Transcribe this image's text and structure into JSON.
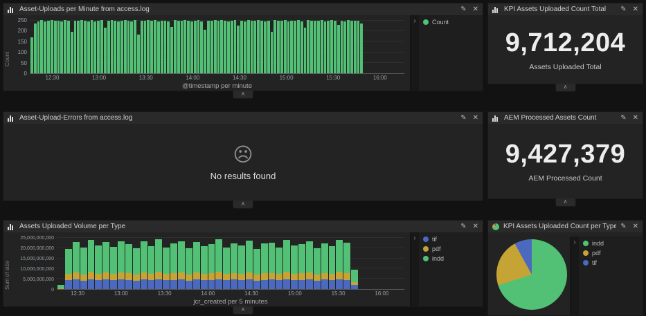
{
  "icons": {
    "edit": "✎",
    "close": "✕",
    "collapse": "∧",
    "expand": "›"
  },
  "colors": {
    "green": "#52c175",
    "yellow": "#c6a335",
    "blue": "#4a69bf"
  },
  "panels": {
    "uploads": {
      "title": "Asset-Uploads per Minute from access.log",
      "y_axis_label": "Count",
      "x_axis_label": "@timestamp per minute",
      "x_ticks": [
        "12:30",
        "13:00",
        "13:30",
        "14:00",
        "14:30",
        "15:00",
        "15:30",
        "16:00"
      ],
      "legend": [
        {
          "label": "Count",
          "color": "#52c175"
        }
      ],
      "chart": {
        "type": "bar",
        "y_max": 260,
        "y_grid": [
          0,
          50,
          100,
          150,
          200,
          250
        ],
        "y_grid_labels": [
          "0",
          "50",
          "100",
          "150",
          "200",
          "250"
        ],
        "series": [
          {
            "name": "Count",
            "color": "#52c175",
            "values": [
              170,
              236,
              248,
              252,
              246,
              250,
              253,
              249,
              251,
              247,
              252,
              250,
              198,
              251,
              249,
              253,
              250,
              246,
              252,
              248,
              251,
              253,
              216,
              250,
              252,
              249,
              247,
              251,
              253,
              250,
              248,
              252,
              186,
              251,
              249,
              253,
              250,
              252,
              246,
              250,
              251,
              248,
              222,
              253,
              250,
              249,
              252,
              251,
              247,
              250,
              253,
              248,
              206,
              251,
              250,
              252,
              249,
              253,
              250,
              246,
              251,
              252,
              228,
              250,
              248,
              253,
              251,
              249,
              252,
              250,
              247,
              251,
              196,
              253,
              250,
              249,
              252,
              248,
              251,
              250,
              253,
              246,
              218,
              252,
              250,
              251,
              249,
              253,
              247,
              250,
              252,
              251,
              232,
              250,
              248,
              253,
              249,
              251,
              250,
              238,
              0,
              0,
              0,
              0,
              0,
              0,
              0,
              0,
              0,
              0,
              0,
              0
            ]
          }
        ]
      }
    },
    "kpi_total": {
      "title": "KPI Assets Uploaded Count Total",
      "value": "9,712,204",
      "label": "Assets Uploaded Total"
    },
    "errors": {
      "title": "Asset-Upload-Errors from access.log",
      "icon": "☹",
      "message": "No results found"
    },
    "kpi_processed": {
      "title": "AEM Processed Assets Count",
      "value": "9,427,379",
      "label": "AEM Processed Count"
    },
    "volume": {
      "title": "Assets Uploaded Volume per Type",
      "y_axis_label": "Sum of size",
      "x_axis_label": "jcr_created per 5 minutes",
      "x_ticks": [
        "12:30",
        "13:00",
        "13:30",
        "14:00",
        "14:30",
        "15:00",
        "15:30",
        "16:00"
      ],
      "legend": [
        {
          "label": "tif",
          "color": "#4a69bf"
        },
        {
          "label": "pdf",
          "color": "#c6a335"
        },
        {
          "label": "indd",
          "color": "#52c175"
        }
      ],
      "chart": {
        "type": "stacked-bar",
        "unit": "billions",
        "y_max": 26,
        "y_grid": [
          0,
          5,
          10,
          15,
          20,
          25
        ],
        "y_grid_labels": [
          "0",
          "5,000,000,000",
          "10,000,000,000",
          "15,000,000,000",
          "20,000,000,000",
          "25,000,000,000"
        ],
        "series": [
          {
            "name": "tif",
            "color": "#4a69bf",
            "values": [
              0,
              4.3,
              4.6,
              4.2,
              4.8,
              4.4,
              4.6,
              4.3,
              4.7,
              4.5,
              4.2,
              4.6,
              4.4,
              4.8,
              4.3,
              4.5,
              4.7,
              4.2,
              4.6,
              4.4,
              4.5,
              4.8,
              4.3,
              4.6,
              4.4,
              4.7,
              4.2,
              4.5,
              4.6,
              4.3,
              4.8,
              4.4,
              4.5,
              4.7,
              4.2,
              4.6,
              4.4,
              4.8,
              4.5,
              2.0,
              0,
              0,
              0,
              0,
              0,
              0
            ]
          },
          {
            "name": "pdf",
            "color": "#c6a335",
            "values": [
              0.5,
              3.0,
              3.4,
              2.9,
              3.6,
              3.2,
              3.5,
              3.0,
              3.4,
              3.3,
              2.9,
              3.5,
              3.2,
              3.6,
              3.0,
              3.4,
              3.3,
              2.9,
              3.5,
              3.1,
              3.4,
              3.6,
              3.0,
              3.3,
              3.2,
              3.5,
              2.9,
              3.4,
              3.3,
              3.0,
              3.6,
              3.2,
              3.4,
              3.5,
              2.9,
              3.3,
              3.1,
              3.6,
              3.4,
              1.4,
              0,
              0,
              0,
              0,
              0,
              0
            ]
          },
          {
            "name": "indd",
            "color": "#52c175",
            "values": [
              1.6,
              12.4,
              14.9,
              13.1,
              15.7,
              13.7,
              15.0,
              13.3,
              15.2,
              14.0,
              12.7,
              15.1,
              13.5,
              15.9,
              13.0,
              14.4,
              15.2,
              12.8,
              14.8,
              13.4,
              14.2,
              15.8,
              12.9,
              14.5,
              13.8,
              15.4,
              12.6,
              14.3,
              14.9,
              13.1,
              15.6,
              13.6,
              14.1,
              15.1,
              12.7,
              14.4,
              13.5,
              15.5,
              14.8,
              6.0,
              0,
              0,
              0,
              0,
              0,
              0
            ]
          }
        ]
      }
    },
    "pie": {
      "title": "KPI Assets Uploaded Count per Type",
      "legend": [
        {
          "label": "indd",
          "color": "#52c175"
        },
        {
          "label": "pdf",
          "color": "#c6a335"
        },
        {
          "label": "tif",
          "color": "#4a69bf"
        }
      ],
      "chart": {
        "type": "pie",
        "slices": [
          {
            "label": "indd",
            "pct": 70,
            "color": "#52c175"
          },
          {
            "label": "pdf",
            "pct": 22,
            "color": "#c6a335"
          },
          {
            "label": "tif",
            "pct": 8,
            "color": "#4a69bf"
          }
        ]
      }
    }
  }
}
